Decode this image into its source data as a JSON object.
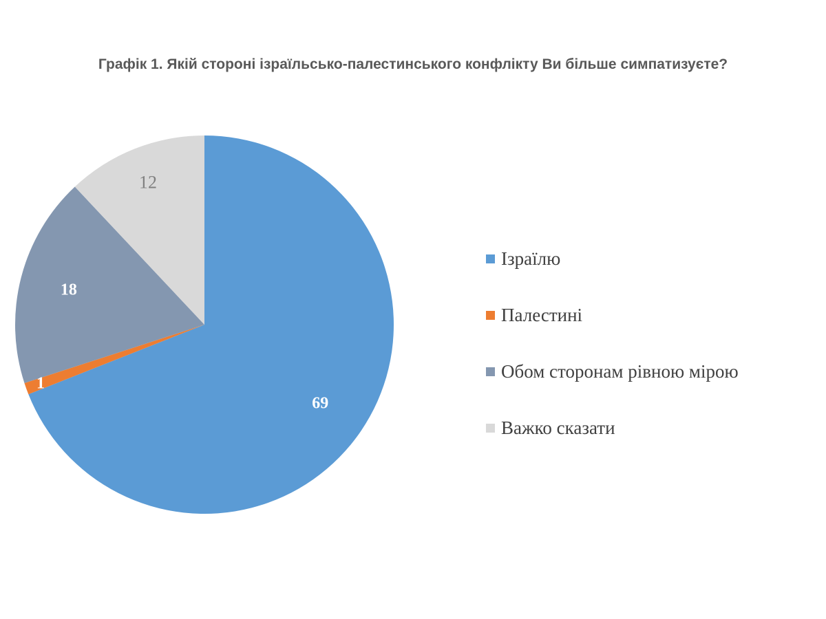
{
  "chart_data": {
    "type": "pie",
    "title": "Графік 1. Якій стороні ізраїльсько-палестинського конфлікту Ви більше симпатизуєте?",
    "categories": [
      "Ізраїлю",
      "Палестині",
      "Обом сторонам рівною мірою",
      "Важко сказати"
    ],
    "values": [
      69,
      1,
      18,
      12
    ],
    "colors": [
      "#5B9BD5",
      "#ED7D31",
      "#8497B0",
      "#D9D9D9"
    ],
    "label_colors": [
      "#FFFFFF",
      "#FFFFFF",
      "#FFFFFF",
      "#7F7F7F"
    ],
    "start": "12 o'clock, clockwise",
    "legend": "right"
  }
}
